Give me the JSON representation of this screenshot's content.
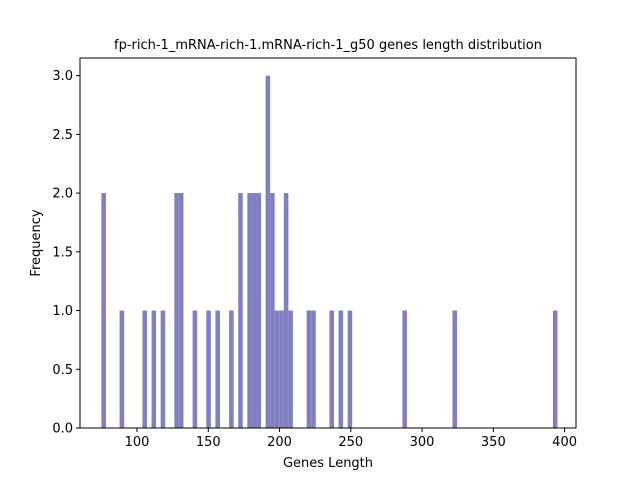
{
  "chart_data": {
    "type": "bar",
    "title": "fp-rich-1_mRNA-rich-1.mRNA-rich-1_g50 genes length distribution",
    "xlabel": "Genes Length",
    "ylabel": "Frequency",
    "xlim": [
      60,
      408
    ],
    "ylim": [
      0,
      3.15
    ],
    "xticks": [
      100,
      150,
      200,
      250,
      300,
      350,
      400
    ],
    "yticks": [
      0.0,
      0.5,
      1.0,
      1.5,
      2.0,
      2.5,
      3.0
    ],
    "xtick_labels": [
      "100",
      "150",
      "200",
      "250",
      "300",
      "350",
      "400"
    ],
    "ytick_labels": [
      "0.0",
      "0.5",
      "1.0",
      "1.5",
      "2.0",
      "2.5",
      "3.0"
    ],
    "bins": 100,
    "range": [
      75,
      395
    ],
    "values": [
      {
        "x": 76.6,
        "count": 2
      },
      {
        "x": 89.4,
        "count": 1
      },
      {
        "x": 105.4,
        "count": 1
      },
      {
        "x": 111.8,
        "count": 1
      },
      {
        "x": 118.2,
        "count": 1
      },
      {
        "x": 127.8,
        "count": 2
      },
      {
        "x": 131.0,
        "count": 2
      },
      {
        "x": 140.6,
        "count": 1
      },
      {
        "x": 150.2,
        "count": 1
      },
      {
        "x": 156.6,
        "count": 1
      },
      {
        "x": 166.2,
        "count": 1
      },
      {
        "x": 172.6,
        "count": 2
      },
      {
        "x": 179.0,
        "count": 2
      },
      {
        "x": 182.2,
        "count": 2
      },
      {
        "x": 185.4,
        "count": 2
      },
      {
        "x": 191.8,
        "count": 3
      },
      {
        "x": 195.0,
        "count": 2
      },
      {
        "x": 198.2,
        "count": 1
      },
      {
        "x": 201.4,
        "count": 1
      },
      {
        "x": 204.6,
        "count": 2
      },
      {
        "x": 207.8,
        "count": 1
      },
      {
        "x": 220.6,
        "count": 1
      },
      {
        "x": 223.8,
        "count": 1
      },
      {
        "x": 236.6,
        "count": 1
      },
      {
        "x": 243.0,
        "count": 1
      },
      {
        "x": 249.4,
        "count": 1
      },
      {
        "x": 287.8,
        "count": 1
      },
      {
        "x": 322.9,
        "count": 1
      },
      {
        "x": 393.4,
        "count": 1
      }
    ],
    "bar_color": "#8080c0",
    "grid": false,
    "legend": "none"
  }
}
